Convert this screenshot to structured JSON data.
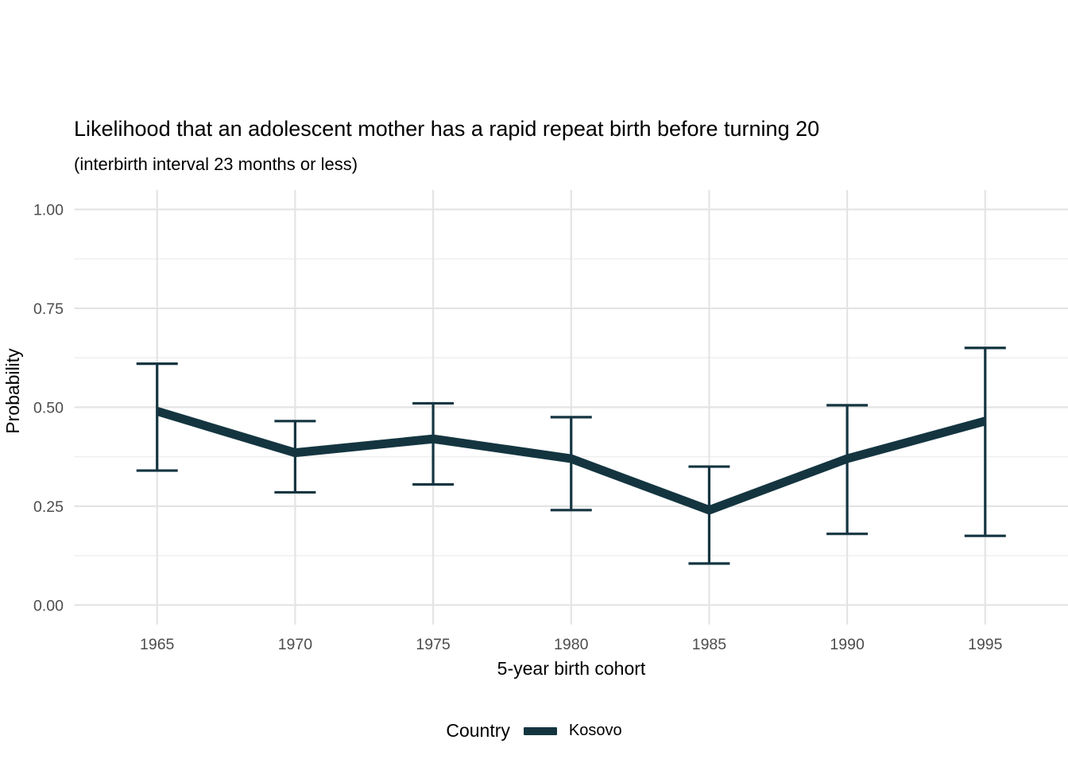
{
  "chart": {
    "title": "Likelihood that an adolescent mother has a rapid repeat birth before turning 20",
    "subtitle": "(interbirth interval 23 months or less)",
    "xlabel": "5-year birth cohort",
    "ylabel": "Probability"
  },
  "legend": {
    "title": "Country",
    "position": "bottom",
    "items": [
      {
        "label": "Kosovo",
        "color": "#143540"
      }
    ]
  },
  "chart_data": {
    "type": "line",
    "title": "Likelihood that an adolescent mother has a rapid repeat birth before turning 20",
    "subtitle": "(interbirth interval 23 months or less)",
    "xlabel": "5-year birth cohort",
    "ylabel": "Probability",
    "categories": [
      "1965",
      "1970",
      "1975",
      "1980",
      "1985",
      "1990",
      "1995"
    ],
    "series": [
      {
        "name": "Kosovo",
        "color": "#143540",
        "values": [
          0.49,
          0.385,
          0.42,
          0.37,
          0.24,
          0.37,
          0.465
        ],
        "ci_low": [
          0.34,
          0.285,
          0.305,
          0.24,
          0.105,
          0.18,
          0.175
        ],
        "ci_high": [
          0.61,
          0.465,
          0.51,
          0.475,
          0.35,
          0.505,
          0.65
        ]
      }
    ],
    "ylim": [
      0,
      1
    ],
    "yticks": [
      0,
      0.25,
      0.5,
      0.75,
      1.0
    ],
    "ytick_labels": [
      "0.00",
      "0.25",
      "0.50",
      "0.75",
      "1.00"
    ],
    "yticks_minor": [
      0.125,
      0.375,
      0.625,
      0.875
    ],
    "grid": true,
    "legend_position": "bottom",
    "error_bars": true
  },
  "colors": {
    "background": "#ffffff",
    "grid_major": "#e4e4e4",
    "grid_minor": "#efefef",
    "tick_label": "#4d4d4d",
    "series": "#143540"
  }
}
